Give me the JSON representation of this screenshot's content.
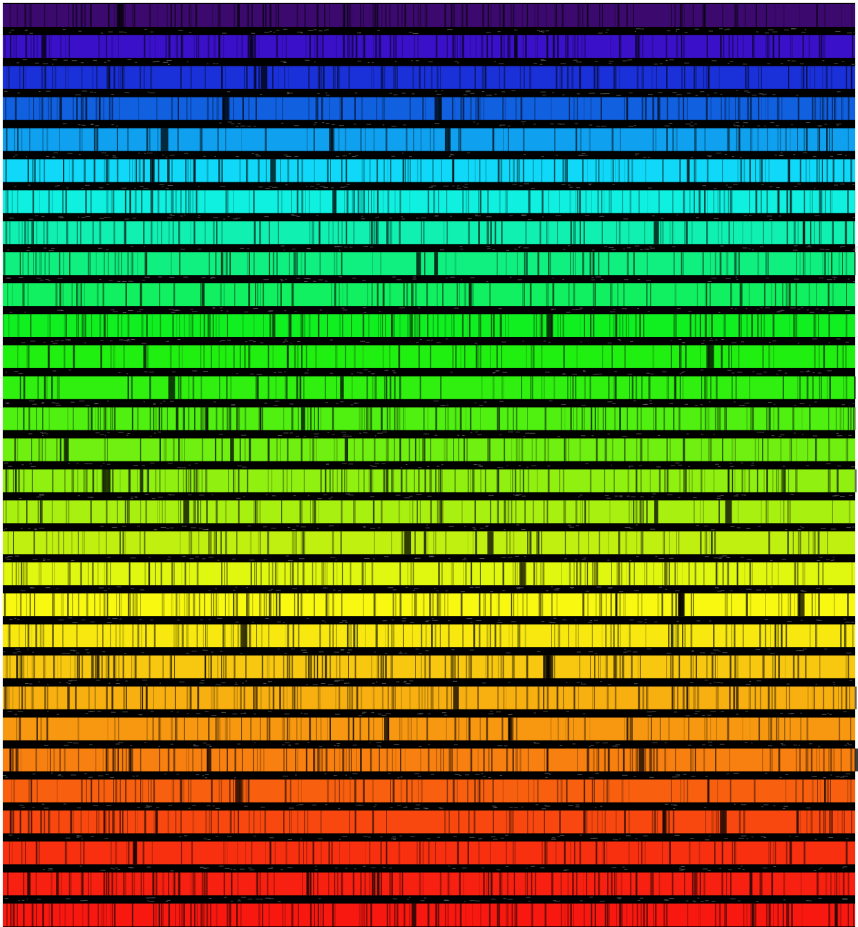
{
  "bands": [
    {
      "color": "#3c0a6e"
    },
    {
      "color": "#3a10c8"
    },
    {
      "color": "#1a30d8"
    },
    {
      "color": "#1060e0"
    },
    {
      "color": "#10a0f0"
    },
    {
      "color": "#10d8f8"
    },
    {
      "color": "#10f0e0"
    },
    {
      "color": "#10f0b0"
    },
    {
      "color": "#10f080"
    },
    {
      "color": "#10f060"
    },
    {
      "color": "#10f020"
    },
    {
      "color": "#20f010"
    },
    {
      "color": "#30f010"
    },
    {
      "color": "#50f010"
    },
    {
      "color": "#70f010"
    },
    {
      "color": "#90f010"
    },
    {
      "color": "#a8f010"
    },
    {
      "color": "#c0f010"
    },
    {
      "color": "#e0f810"
    },
    {
      "color": "#f8f810"
    },
    {
      "color": "#f8e810"
    },
    {
      "color": "#f8c810"
    },
    {
      "color": "#f8b010"
    },
    {
      "color": "#f89810"
    },
    {
      "color": "#f88010"
    },
    {
      "color": "#f86010"
    },
    {
      "color": "#f84810"
    },
    {
      "color": "#f83010"
    },
    {
      "color": "#f82010"
    },
    {
      "color": "#f81810"
    }
  ]
}
